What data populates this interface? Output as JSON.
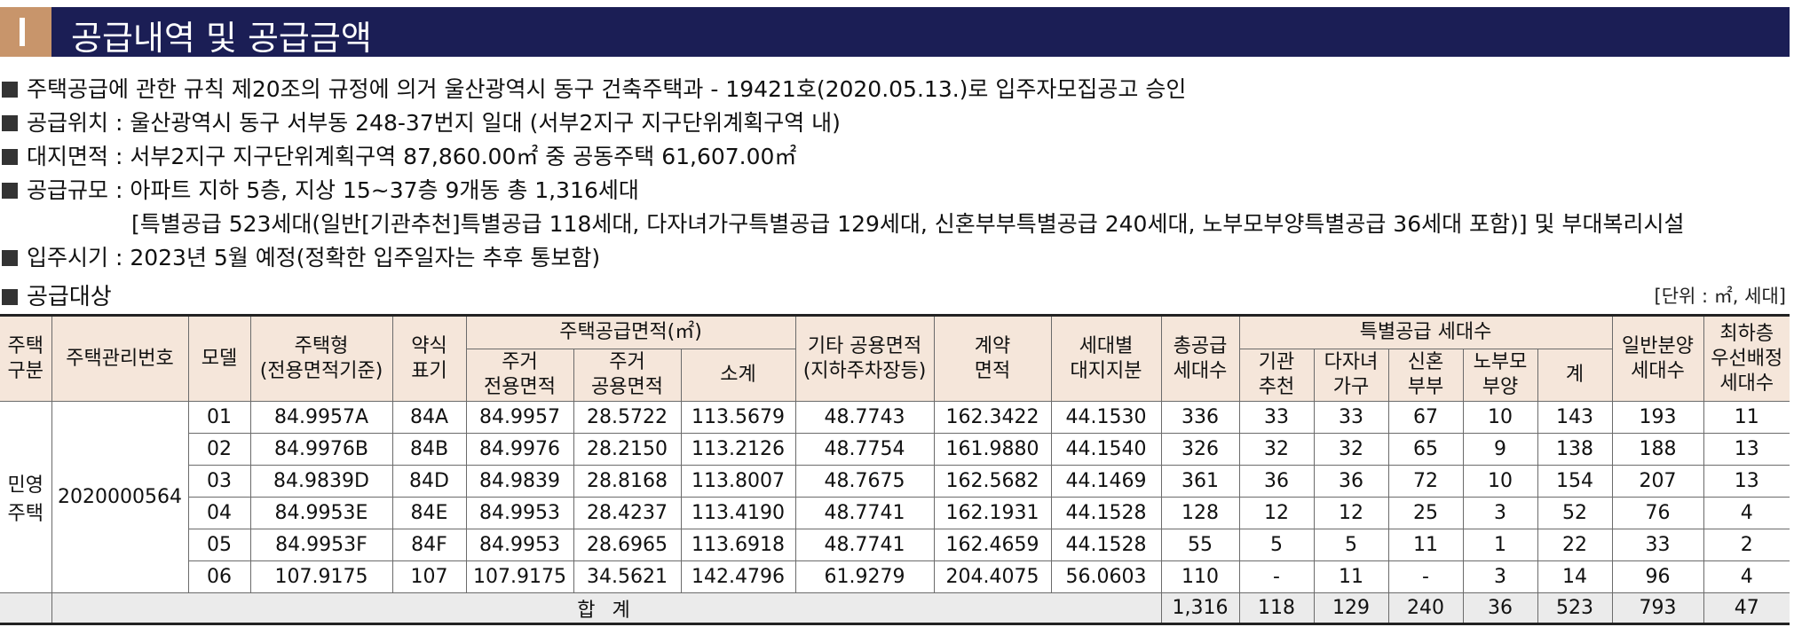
{
  "header": {
    "mark": "I",
    "title": "공급내역 및 공급금액"
  },
  "info_lines": [
    "주택공급에 관한 규칙 제20조의 규정에 의거 울산광역시 동구 건축주택과 - 19421호(2020.05.13.)로 입주자모집공고 승인",
    "공급위치 : 울산광역시 동구 서부동 248-37번지 일대 (서부2지구 지구단위계획구역 내)",
    "대지면적 : 서부2지구 지구단위계획구역 87,860.00㎡ 중 공동주택 61,607.00㎡",
    "공급규모 : 아파트 지하 5층, 지상 15~37층 9개동 총 1,316세대",
    "[특별공급 523세대(일반[기관추천]특별공급 118세대, 다자녀가구특별공급 129세대, 신혼부부특별공급 240세대, 노부모부양특별공급 36세대 포함)] 및 부대복리시설",
    "입주시기 : 2023년 5월 예정(정확한 입주일자는 추후 통보함)"
  ],
  "section": {
    "label": "공급대상",
    "unit": "[단위 : ㎡, 세대]"
  },
  "table": {
    "headers": {
      "housing_type": "주택\n구분",
      "mgmt_no": "주택관리번호",
      "model": "모델",
      "housing_size": "주택형\n(전용면적기준)",
      "abbr": "약식\n표기",
      "supply_area": "주택공급면적(㎡)",
      "exclusive": "주거\n전용면적",
      "common": "주거\n공용면적",
      "subtotal": "소계",
      "other_common": "기타 공용면적\n(지하주차장등)",
      "contract_area": "계약\n면적",
      "land_share": "세대별\n대지지분",
      "total_units": "총공급\n세대수",
      "special": "특별공급 세대수",
      "sp_institution": "기관\n추천",
      "sp_multichild": "다자녀\n가구",
      "sp_newlywed": "신혼\n부부",
      "sp_elderly": "노부모\n부양",
      "sp_sum": "계",
      "general": "일반분양\n세대수",
      "priority": "최하층\n우선배정\n세대수"
    },
    "group_type": "민영\n주택",
    "group_no": "2020000564",
    "rows": [
      {
        "model": "01",
        "type": "84.9957A",
        "abbr": "84A",
        "exclusive": "84.9957",
        "common": "28.5722",
        "subtotal": "113.5679",
        "other": "48.7743",
        "contract": "162.3422",
        "land": "44.1530",
        "total": "336",
        "inst": "33",
        "multi": "33",
        "newly": "67",
        "elder": "10",
        "sum": "143",
        "general": "193",
        "priority": "11"
      },
      {
        "model": "02",
        "type": "84.9976B",
        "abbr": "84B",
        "exclusive": "84.9976",
        "common": "28.2150",
        "subtotal": "113.2126",
        "other": "48.7754",
        "contract": "161.9880",
        "land": "44.1540",
        "total": "326",
        "inst": "32",
        "multi": "32",
        "newly": "65",
        "elder": "9",
        "sum": "138",
        "general": "188",
        "priority": "13"
      },
      {
        "model": "03",
        "type": "84.9839D",
        "abbr": "84D",
        "exclusive": "84.9839",
        "common": "28.8168",
        "subtotal": "113.8007",
        "other": "48.7675",
        "contract": "162.5682",
        "land": "44.1469",
        "total": "361",
        "inst": "36",
        "multi": "36",
        "newly": "72",
        "elder": "10",
        "sum": "154",
        "general": "207",
        "priority": "13"
      },
      {
        "model": "04",
        "type": "84.9953E",
        "abbr": "84E",
        "exclusive": "84.9953",
        "common": "28.4237",
        "subtotal": "113.4190",
        "other": "48.7741",
        "contract": "162.1931",
        "land": "44.1528",
        "total": "128",
        "inst": "12",
        "multi": "12",
        "newly": "25",
        "elder": "3",
        "sum": "52",
        "general": "76",
        "priority": "4"
      },
      {
        "model": "05",
        "type": "84.9953F",
        "abbr": "84F",
        "exclusive": "84.9953",
        "common": "28.6965",
        "subtotal": "113.6918",
        "other": "48.7741",
        "contract": "162.4659",
        "land": "44.1528",
        "total": "55",
        "inst": "5",
        "multi": "5",
        "newly": "11",
        "elder": "1",
        "sum": "22",
        "general": "33",
        "priority": "2"
      },
      {
        "model": "06",
        "type": "107.9175",
        "abbr": "107",
        "exclusive": "107.9175",
        "common": "34.5621",
        "subtotal": "142.4796",
        "other": "61.9279",
        "contract": "204.4075",
        "land": "56.0603",
        "total": "110",
        "inst": "-",
        "multi": "11",
        "newly": "-",
        "elder": "3",
        "sum": "14",
        "general": "96",
        "priority": "4"
      }
    ],
    "total": {
      "label": "합 계",
      "total": "1,316",
      "inst": "118",
      "multi": "129",
      "newly": "240",
      "elder": "36",
      "sum": "523",
      "general": "793",
      "priority": "47"
    }
  },
  "colors": {
    "title_bar": "#1b1e55",
    "title_mark": "#c8956b",
    "header_fill": "#f5e6da",
    "total_fill": "#ebebeb"
  }
}
